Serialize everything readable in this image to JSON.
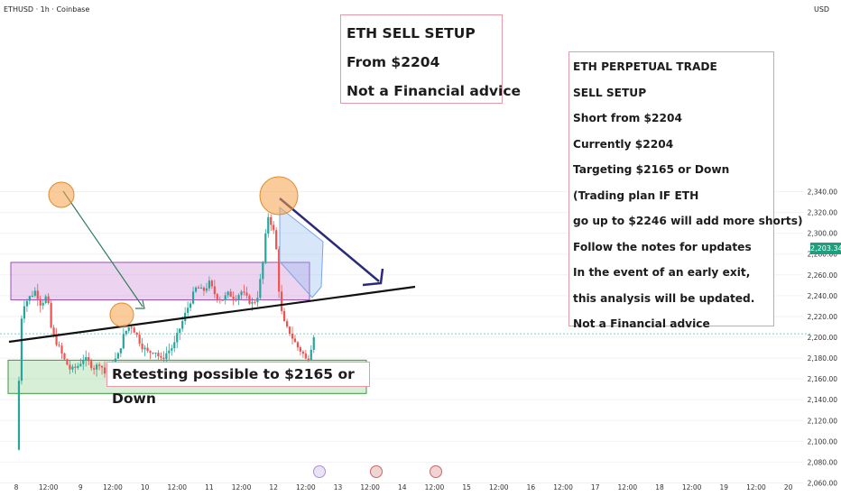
{
  "header": {
    "symbol": "ETHUSD · 1h · Coinbase",
    "currency": "USD"
  },
  "price_label": "2,203.34",
  "notes": {
    "top": [
      "ETH SELL SETUP",
      "From $2204",
      "Not a Financial advice"
    ],
    "right": [
      "ETH PERPETUAL TRADE",
      "SELL SETUP",
      "Short from $2204",
      "Currently $2204",
      "Targeting $2165 or Down",
      "(Trading plan IF ETH",
      "go up to $2246 will add more shorts)",
      "Follow the notes for updates",
      "In the event of an early exit,",
      "this analysis will be updated.",
      "Not a Financial advice"
    ],
    "bottom": "Retesting possible to $2165 or Down"
  },
  "colors": {
    "up": "#26a69a",
    "down": "#ef5350",
    "resistance_zone": "#c983d6",
    "support_zone": "#7bc67b",
    "trendline": "#111111",
    "target_arrow": "#2b2a7a",
    "circle": "#f5a34a",
    "channel": "#90b8f0"
  },
  "chart_data": {
    "type": "candlestick",
    "title": "",
    "yaxis": {
      "side": "right",
      "ticks": [
        2340,
        2320,
        2300,
        2280,
        2260,
        2240,
        2220,
        2200,
        2180,
        2160,
        2140,
        2120,
        2100,
        2080,
        2060
      ],
      "range": [
        2060,
        2340
      ]
    },
    "xaxis": {
      "ticks": [
        "8",
        "12:00",
        "9",
        "12:00",
        "10",
        "12:00",
        "11",
        "12:00",
        "12",
        "12:00",
        "13",
        "12:00",
        "14",
        "12:00",
        "15",
        "12:00",
        "16",
        "12:00",
        "17",
        "12:00",
        "18",
        "12:00",
        "19",
        "12:00",
        "20"
      ]
    },
    "current_price": 2203.34,
    "zones": [
      {
        "name": "resistance",
        "from": 2236,
        "to": 2272
      },
      {
        "name": "support",
        "from": 2146,
        "to": 2178
      }
    ],
    "price_path": [
      [
        8.0,
        2092
      ],
      [
        8.03,
        2135
      ],
      [
        8.07,
        2215
      ],
      [
        8.12,
        2232
      ],
      [
        8.2,
        2238
      ],
      [
        8.3,
        2245
      ],
      [
        8.38,
        2232
      ],
      [
        8.48,
        2240
      ],
      [
        8.55,
        2205
      ],
      [
        8.65,
        2192
      ],
      [
        8.75,
        2178
      ],
      [
        8.85,
        2168
      ],
      [
        8.95,
        2172
      ],
      [
        9.05,
        2180
      ],
      [
        9.12,
        2176
      ],
      [
        9.22,
        2170
      ],
      [
        9.3,
        2176
      ],
      [
        9.4,
        2162
      ],
      [
        9.48,
        2173
      ],
      [
        9.58,
        2182
      ],
      [
        9.68,
        2204
      ],
      [
        9.78,
        2212
      ],
      [
        9.85,
        2205
      ],
      [
        9.95,
        2192
      ],
      [
        10.05,
        2185
      ],
      [
        10.15,
        2188
      ],
      [
        10.25,
        2178
      ],
      [
        10.35,
        2186
      ],
      [
        10.45,
        2192
      ],
      [
        10.52,
        2205
      ],
      [
        10.6,
        2218
      ],
      [
        10.7,
        2234
      ],
      [
        10.8,
        2248
      ],
      [
        10.9,
        2244
      ],
      [
        11.0,
        2252
      ],
      [
        11.1,
        2240
      ],
      [
        11.2,
        2236
      ],
      [
        11.3,
        2242
      ],
      [
        11.4,
        2238
      ],
      [
        11.5,
        2244
      ],
      [
        11.6,
        2236
      ],
      [
        11.68,
        2232
      ],
      [
        11.75,
        2240
      ],
      [
        11.82,
        2264
      ],
      [
        11.88,
        2300
      ],
      [
        11.92,
        2318
      ],
      [
        11.97,
        2308
      ],
      [
        12.03,
        2295
      ],
      [
        12.08,
        2248
      ],
      [
        12.12,
        2225
      ],
      [
        12.18,
        2210
      ],
      [
        12.25,
        2205
      ],
      [
        12.32,
        2196
      ],
      [
        12.38,
        2190
      ],
      [
        12.45,
        2185
      ],
      [
        12.52,
        2176
      ],
      [
        12.58,
        2190
      ],
      [
        12.63,
        2204
      ]
    ]
  }
}
